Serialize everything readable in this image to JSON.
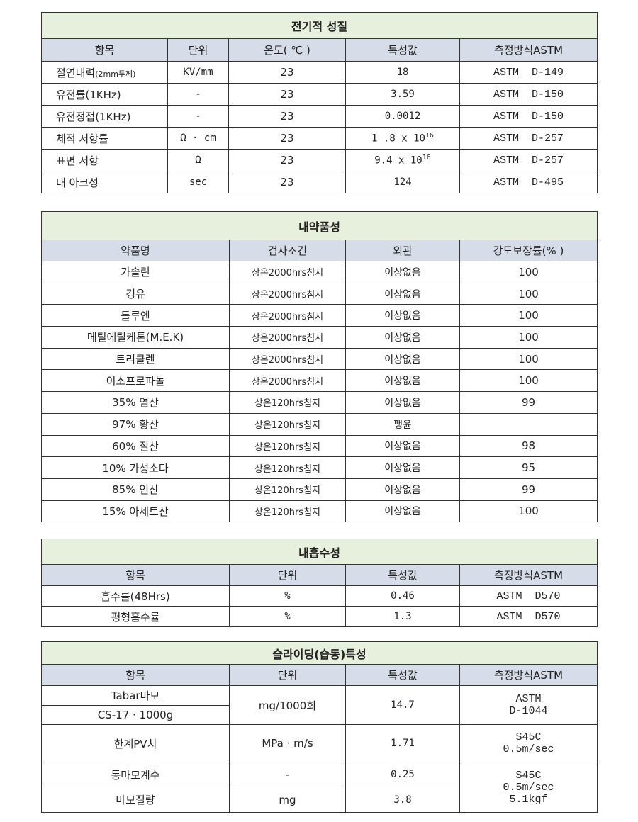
{
  "electrical": {
    "title": "전기적 성질",
    "headers": [
      "항목",
      "단위",
      "온도( ℃ )",
      "특성값",
      "측정방식ASTM"
    ],
    "rows": [
      {
        "item": "절연내력",
        "note": "(2mm두께)",
        "unit": "KV/mm",
        "temp": "23",
        "value": "18",
        "exp": "",
        "method": "ASTM  D-149"
      },
      {
        "item": "유전률(1KHz)",
        "note": "",
        "unit": "-",
        "temp": "23",
        "value": "3.59",
        "exp": "",
        "method": "ASTM  D-150"
      },
      {
        "item": "유전정접(1KHz)",
        "note": "",
        "unit": "-",
        "temp": "23",
        "value": "0.0012",
        "exp": "",
        "method": "ASTM  D-150"
      },
      {
        "item": "체적 저항률",
        "note": "",
        "unit": "Ω · cm",
        "temp": "23",
        "value": "1 .8 x 10",
        "exp": "16",
        "method": "ASTM  D-257"
      },
      {
        "item": "표면 저항",
        "note": "",
        "unit": "Ω",
        "temp": "23",
        "value": "9.4 x 10",
        "exp": "16",
        "method": "ASTM  D-257"
      },
      {
        "item": "내 아크성",
        "note": "",
        "unit": "sec",
        "temp": "23",
        "value": "124",
        "exp": "",
        "method": "ASTM  D-495"
      }
    ]
  },
  "chemical": {
    "title": "내약품성",
    "headers": [
      "약품명",
      "검사조건",
      "외관",
      "강도보장률(%  )"
    ],
    "rows": [
      [
        "가솔린",
        "상온2000hrs침지",
        "이상없음",
        "100"
      ],
      [
        "경유",
        "상온2000hrs침지",
        "이상없음",
        "100"
      ],
      [
        "톨루엔",
        "상온2000hrs침지",
        "이상없음",
        "100"
      ],
      [
        "메틸에틸케톤(M.E.K)",
        "상온2000hrs침지",
        "이상없음",
        "100"
      ],
      [
        "트리클렌",
        "상온2000hrs침지",
        "이상없음",
        "100"
      ],
      [
        "이소프로파놀",
        "상온2000hrs침지",
        "이상없음",
        "100"
      ],
      [
        "35% 염산",
        "상온120hrs침지",
        "이상없음",
        "99"
      ],
      [
        "97% 황산",
        "상온120hrs침지",
        "팽윤",
        ""
      ],
      [
        "60% 질산",
        "상온120hrs침지",
        "이상없음",
        "98"
      ],
      [
        "10% 가성소다",
        "상온120hrs침지",
        "이상없음",
        "95"
      ],
      [
        "85% 인산",
        "상온120hrs침지",
        "이상없음",
        "99"
      ],
      [
        "15% 아세트산",
        "상온120hrs침지",
        "이상없음",
        "100"
      ]
    ]
  },
  "water": {
    "title": "내흡수성",
    "headers": [
      "항목",
      "단위",
      "특성값",
      "측정방식ASTM"
    ],
    "rows": [
      [
        "흡수률(48Hrs)",
        "%",
        "0.46",
        "ASTM  D570"
      ],
      [
        "평형흡수률",
        "%",
        "1.3",
        "ASTM  D570"
      ]
    ]
  },
  "sliding": {
    "title": "슬라이딩(습동)특성",
    "headers": [
      "항목",
      "단위",
      "특성값",
      "측정방식ASTM"
    ],
    "tabar": {
      "item1": "Tabar마모",
      "item2": "CS-17 · 1000g",
      "unit": "mg/1000회",
      "value": "14.7",
      "method1": "ASTM",
      "method2": "D-1044"
    },
    "pv": {
      "item": "한계PV치",
      "unit": "MPa · m/s",
      "value": "1.71",
      "method1": "S45C",
      "method2": "0.5m/sec"
    },
    "friction": {
      "item": "동마모계수",
      "unit": "-",
      "value": "0.25"
    },
    "wear": {
      "item": "마모질량",
      "unit": "mg",
      "value": "3.8"
    },
    "shared_method": {
      "line1": "S45C",
      "line2": "0.5m/sec",
      "line3": "5.1kgf"
    }
  }
}
